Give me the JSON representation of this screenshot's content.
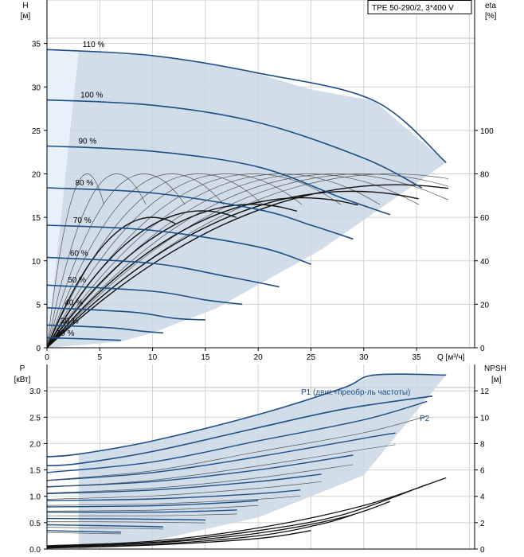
{
  "chart_data": [
    {
      "type": "line",
      "name_box": "TPE 50-290/2, 3*400 V",
      "ylabel_left": "H",
      "ylabel_left_unit": "[м]",
      "ylabel_right": "eta",
      "ylabel_right_unit": "[%]",
      "xlabel": "Q [м³/ч]",
      "xlim": [
        0,
        40.5
      ],
      "ylim_left": [
        0,
        40
      ],
      "ylim_right": [
        0,
        160
      ],
      "x_ticks": [
        "0",
        "5",
        "10",
        "15",
        "20",
        "25",
        "30",
        "35"
      ],
      "y_left_ticks": [
        "0",
        "5",
        "10",
        "15",
        "20",
        "25",
        "30",
        "35"
      ],
      "y_right_ticks": [
        "0",
        "20",
        "40",
        "60",
        "80",
        "100"
      ],
      "envelope": {
        "min_flow_line": [
          [
            0,
            0
          ],
          [
            3,
            34.2
          ]
        ],
        "max_curve": [
          [
            3,
            34.2
          ],
          [
            10,
            33.6
          ],
          [
            15,
            32.8
          ],
          [
            20,
            31.5
          ],
          [
            25,
            29.7
          ],
          [
            31,
            28.4
          ],
          [
            37.8,
            21.3
          ]
        ],
        "right_edge": [
          [
            37.8,
            21.3
          ],
          [
            26,
            11.3
          ],
          [
            16,
            4.5
          ],
          [
            10,
            1.7
          ],
          [
            7,
            0.7
          ],
          [
            0,
            0
          ]
        ]
      },
      "speed_curves": [
        {
          "label": "110 %",
          "points": [
            [
              0,
              34.3
            ],
            [
              10,
              33.6
            ],
            [
              20,
              31.6
            ],
            [
              31,
              28.4
            ],
            [
              37.8,
              21.3
            ]
          ]
        },
        {
          "label": "100 %",
          "points": [
            [
              0,
              28.5
            ],
            [
              10,
              27.9
            ],
            [
              20,
              25.9
            ],
            [
              30,
              21.8
            ],
            [
              35.5,
              18.4
            ]
          ]
        },
        {
          "label": "90 %",
          "points": [
            [
              0,
              23.2
            ],
            [
              10,
              22.6
            ],
            [
              20,
              20.8
            ],
            [
              28,
              17.2
            ],
            [
              32.5,
              15.3
            ]
          ]
        },
        {
          "label": "80 %",
          "points": [
            [
              0,
              18.4
            ],
            [
              10,
              17.8
            ],
            [
              20,
              15.9
            ],
            [
              25,
              14.1
            ],
            [
              29,
              12.5
            ]
          ]
        },
        {
          "label": "70 %",
          "points": [
            [
              0,
              14.1
            ],
            [
              10,
              13.5
            ],
            [
              20,
              11.6
            ],
            [
              25,
              9.6
            ]
          ]
        },
        {
          "label": "60 %",
          "points": [
            [
              0,
              10.4
            ],
            [
              10,
              9.7
            ],
            [
              17,
              8.2
            ],
            [
              22,
              7.0
            ]
          ]
        },
        {
          "label": "50 %",
          "points": [
            [
              0,
              7.2
            ],
            [
              10,
              6.5
            ],
            [
              15,
              5.5
            ],
            [
              18.5,
              5.0
            ]
          ]
        },
        {
          "label": "40 %",
          "points": [
            [
              0,
              4.6
            ],
            [
              8,
              4.1
            ],
            [
              12,
              3.4
            ],
            [
              15,
              3.2
            ]
          ]
        },
        {
          "label": "30 %",
          "points": [
            [
              0,
              2.6
            ],
            [
              6,
              2.3
            ],
            [
              9,
              1.9
            ],
            [
              11,
              1.7
            ]
          ]
        },
        {
          "label": "20 %",
          "points": [
            [
              0,
              1.15
            ],
            [
              4,
              1.0
            ],
            [
              7,
              0.85
            ]
          ]
        }
      ],
      "efficiency_curves_peak_flow": [
        3.8,
        6.6,
        9.2,
        11.8,
        14.4,
        17,
        19.6,
        22.2,
        24.8,
        27.4,
        30,
        32.6
      ],
      "efficiency_peak_value": 80
    },
    {
      "type": "line",
      "ylabel_left": "P",
      "ylabel_left_unit": "[кВт]",
      "ylabel_right": "NPSH",
      "ylabel_right_unit": "[м]",
      "xlim": [
        0,
        40.5
      ],
      "ylim_left": [
        0,
        3.5
      ],
      "ylim_right": [
        0,
        14
      ],
      "y_left_ticks": [
        "0.0",
        "0.5",
        "1.0",
        "1.5",
        "2.0",
        "2.5",
        "3.0"
      ],
      "y_right_ticks": [
        "0",
        "2",
        "4",
        "6",
        "8",
        "10",
        "12"
      ],
      "legend": [
        "P1 (двиг.+преобр-ль частоты)",
        "P2"
      ],
      "p1_max_curve": [
        [
          0,
          1.75
        ],
        [
          3,
          1.8
        ],
        [
          10,
          2.05
        ],
        [
          20,
          2.55
        ],
        [
          28,
          3.05
        ],
        [
          31,
          3.3
        ],
        [
          37.8,
          3.3
        ]
      ],
      "p2_max_curve": [
        [
          0,
          1.58
        ],
        [
          3,
          1.62
        ],
        [
          10,
          1.85
        ],
        [
          20,
          2.3
        ],
        [
          28,
          2.65
        ],
        [
          36.5,
          2.9
        ]
      ],
      "power_curves": [
        {
          "points": [
            [
              0,
              1.45
            ],
            [
              10,
              1.65
            ],
            [
              20,
              2.05
            ],
            [
              30,
              2.45
            ],
            [
              36,
              2.8
            ]
          ]
        },
        {
          "points": [
            [
              0,
              1.3
            ],
            [
              10,
              1.45
            ],
            [
              20,
              1.75
            ],
            [
              30,
              2.1
            ],
            [
              33,
              2.2
            ]
          ]
        },
        {
          "points": [
            [
              0,
              1.18
            ],
            [
              10,
              1.28
            ],
            [
              20,
              1.5
            ],
            [
              29,
              1.78
            ]
          ]
        },
        {
          "points": [
            [
              0,
              1.05
            ],
            [
              10,
              1.12
            ],
            [
              20,
              1.28
            ],
            [
              26,
              1.42
            ]
          ]
        },
        {
          "points": [
            [
              0,
              0.92
            ],
            [
              10,
              0.95
            ],
            [
              20,
              1.05
            ],
            [
              24,
              1.12
            ]
          ]
        },
        {
          "points": [
            [
              0,
              0.8
            ],
            [
              10,
              0.82
            ],
            [
              17,
              0.88
            ],
            [
              20,
              0.92
            ]
          ]
        },
        {
          "points": [
            [
              0,
              0.7
            ],
            [
              10,
              0.7
            ],
            [
              15,
              0.72
            ],
            [
              18,
              0.74
            ]
          ]
        },
        {
          "points": [
            [
              0,
              0.58
            ],
            [
              8,
              0.57
            ],
            [
              12,
              0.56
            ],
            [
              15,
              0.55
            ]
          ]
        },
        {
          "points": [
            [
              0,
              0.46
            ],
            [
              6,
              0.44
            ],
            [
              9,
              0.43
            ],
            [
              11,
              0.42
            ]
          ]
        },
        {
          "points": [
            [
              0,
              0.35
            ],
            [
              4,
              0.33
            ],
            [
              7,
              0.32
            ]
          ]
        }
      ],
      "npsh_curves": [
        {
          "points": [
            [
              0,
              0.25
            ],
            [
              10,
              0.6
            ],
            [
              20,
              1.6
            ],
            [
              30,
              3.3
            ],
            [
              37.8,
              5.4
            ]
          ]
        },
        {
          "points": [
            [
              0,
              0.2
            ],
            [
              10,
              0.5
            ],
            [
              20,
              1.4
            ],
            [
              28,
              2.6
            ],
            [
              36,
              4.9
            ]
          ]
        },
        {
          "points": [
            [
              0,
              0.15
            ],
            [
              10,
              0.45
            ],
            [
              20,
              1.2
            ],
            [
              28,
              2.4
            ],
            [
              32.5,
              3.6
            ]
          ]
        },
        {
          "points": [
            [
              0,
              0.1
            ],
            [
              10,
              0.35
            ],
            [
              20,
              1.0
            ],
            [
              26,
              1.9
            ],
            [
              29,
              2.6
            ]
          ]
        },
        {
          "points": [
            [
              0,
              0.08
            ],
            [
              10,
              0.3
            ],
            [
              20,
              0.8
            ],
            [
              25,
              1.4
            ]
          ]
        }
      ],
      "envelope_right": [
        [
          37.8,
          3.3
        ],
        [
          30,
          1.4
        ],
        [
          20,
          0.6
        ],
        [
          10,
          0.15
        ],
        [
          3,
          0.0
        ]
      ]
    }
  ]
}
